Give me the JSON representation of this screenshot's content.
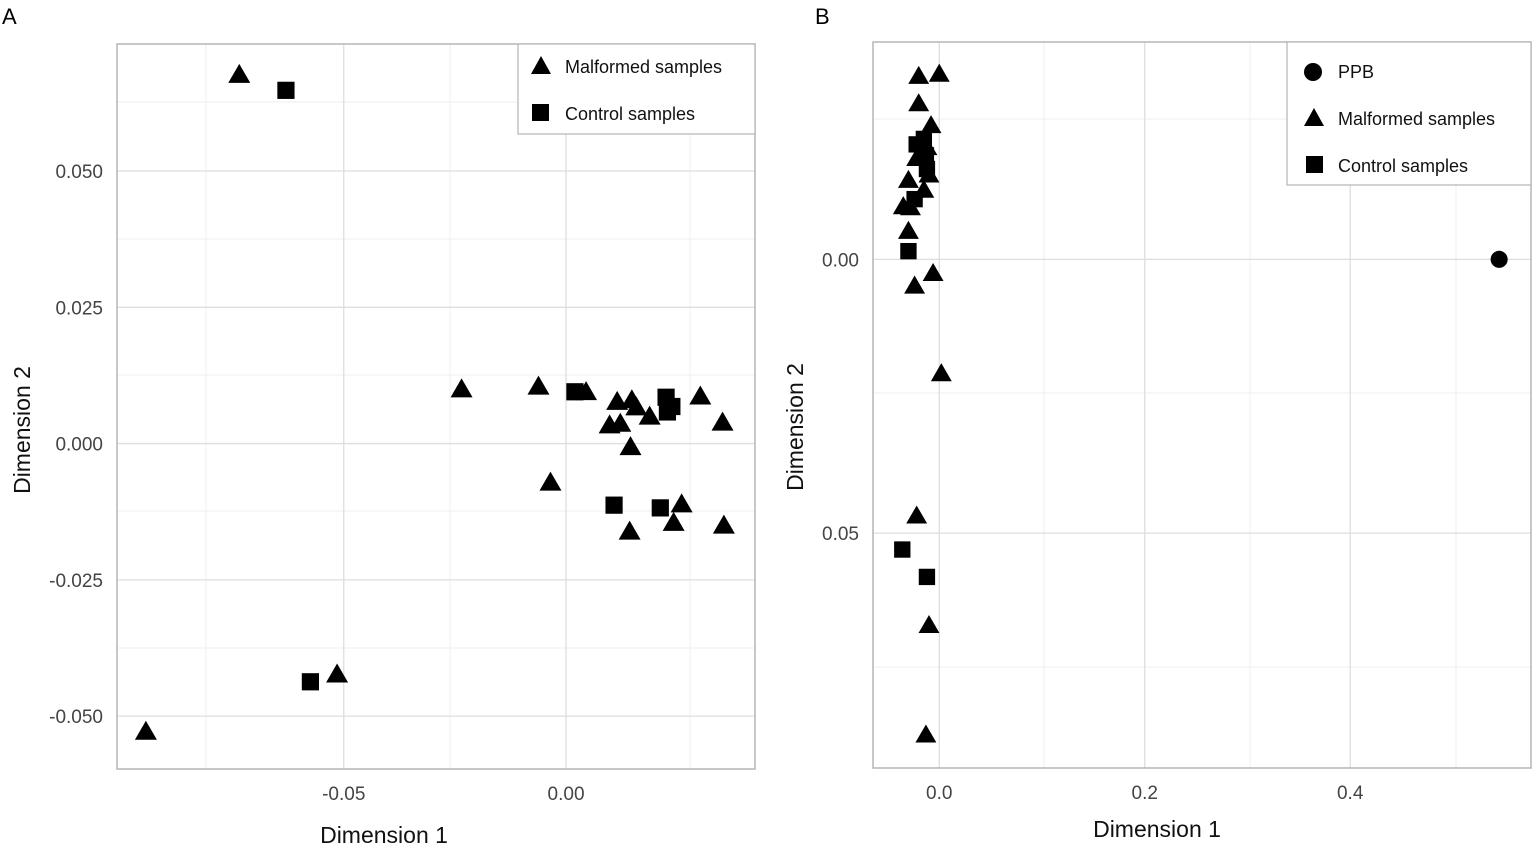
{
  "chart_data": [
    {
      "panel": "A",
      "type": "scatter",
      "title": "",
      "xlabel": "Dimension 1",
      "ylabel": "Dimension 2",
      "xlim": [
        -0.101,
        0.0425
      ],
      "ylim": [
        -0.0597,
        0.0733
      ],
      "y_reversed": false,
      "grid": true,
      "x_ticks": [
        -0.05,
        0.0
      ],
      "x_tick_labels": [
        "-0.05",
        "0.00"
      ],
      "y_ticks": [
        0.05,
        0.025,
        0.0,
        -0.025,
        -0.05
      ],
      "y_tick_labels": [
        "0.050",
        "0.025",
        "0.000",
        "-0.025",
        "-0.050"
      ],
      "legend": {
        "position": "top-right",
        "entries": [
          {
            "label": "Malformed samples",
            "shape": "triangle"
          },
          {
            "label": "Control samples",
            "shape": "square"
          }
        ]
      },
      "series": [
        {
          "name": "Malformed samples",
          "shape": "triangle",
          "points": [
            [
              -0.0735,
              0.0675
            ],
            [
              -0.0515,
              -0.0425
            ],
            [
              -0.0945,
              -0.053
            ],
            [
              -0.0235,
              0.0098
            ],
            [
              -0.0062,
              0.0103
            ],
            [
              -0.0035,
              -0.0073
            ],
            [
              0.0045,
              0.0093
            ],
            [
              0.0115,
              0.0075
            ],
            [
              0.0148,
              0.0078
            ],
            [
              0.0158,
              0.0065
            ],
            [
              0.0098,
              0.0032
            ],
            [
              0.0122,
              0.0035
            ],
            [
              0.0188,
              0.0048
            ],
            [
              0.0145,
              -0.0008
            ],
            [
              0.0302,
              0.0085
            ],
            [
              0.0352,
              0.0037
            ],
            [
              0.026,
              -0.0113
            ],
            [
              0.0242,
              -0.0147
            ],
            [
              0.0355,
              -0.0152
            ],
            [
              0.0143,
              -0.0163
            ]
          ]
        },
        {
          "name": "Control samples",
          "shape": "square",
          "points": [
            [
              -0.063,
              0.0648
            ],
            [
              -0.0575,
              -0.0437
            ],
            [
              0.002,
              0.0095
            ],
            [
              0.0225,
              0.0085
            ],
            [
              0.0238,
              0.0068
            ],
            [
              0.0228,
              0.0058
            ],
            [
              0.0108,
              -0.0113
            ],
            [
              0.0212,
              -0.0118
            ]
          ]
        }
      ]
    },
    {
      "panel": "B",
      "type": "scatter",
      "title": "",
      "xlabel": "Dimension 1",
      "ylabel": "Dimension 2",
      "xlim": [
        -0.0645,
        0.576
      ],
      "ylim": [
        -0.0397,
        0.0929
      ],
      "y_reversed": true,
      "grid": true,
      "x_ticks": [
        0.0,
        0.2,
        0.4
      ],
      "x_tick_labels": [
        "0.0",
        "0.2",
        "0.4"
      ],
      "y_ticks": [
        0.0,
        0.05
      ],
      "y_tick_labels": [
        "0.00",
        "0.05"
      ],
      "legend": {
        "position": "top-right",
        "entries": [
          {
            "label": "PPB",
            "shape": "circle"
          },
          {
            "label": "Malformed samples",
            "shape": "triangle"
          },
          {
            "label": "Control samples",
            "shape": "square"
          }
        ]
      },
      "series": [
        {
          "name": "PPB",
          "shape": "circle",
          "points": [
            [
              0.545,
              0.0
            ]
          ]
        },
        {
          "name": "Malformed samples",
          "shape": "triangle",
          "points": [
            [
              -0.02,
              -0.0333
            ],
            [
              0.0,
              -0.0337
            ],
            [
              -0.02,
              -0.0283
            ],
            [
              -0.008,
              -0.0243
            ],
            [
              -0.012,
              -0.0203
            ],
            [
              -0.022,
              -0.0183
            ],
            [
              -0.01,
              -0.0153
            ],
            [
              -0.03,
              -0.0143
            ],
            [
              -0.015,
              -0.0125
            ],
            [
              -0.035,
              -0.0095
            ],
            [
              -0.028,
              -0.0093
            ],
            [
              -0.03,
              -0.005
            ],
            [
              -0.006,
              0.0027
            ],
            [
              -0.024,
              0.005
            ],
            [
              0.002,
              0.021
            ],
            [
              -0.022,
              0.047
            ],
            [
              -0.01,
              0.067
            ],
            [
              -0.013,
              0.087
            ]
          ]
        },
        {
          "name": "Control samples",
          "shape": "square",
          "points": [
            [
              -0.022,
              -0.021
            ],
            [
              -0.015,
              -0.022
            ],
            [
              -0.013,
              -0.019
            ],
            [
              -0.012,
              -0.0165
            ],
            [
              -0.024,
              -0.011
            ],
            [
              -0.03,
              -0.0015
            ],
            [
              -0.036,
              0.053
            ],
            [
              -0.012,
              0.058
            ]
          ]
        }
      ]
    }
  ]
}
